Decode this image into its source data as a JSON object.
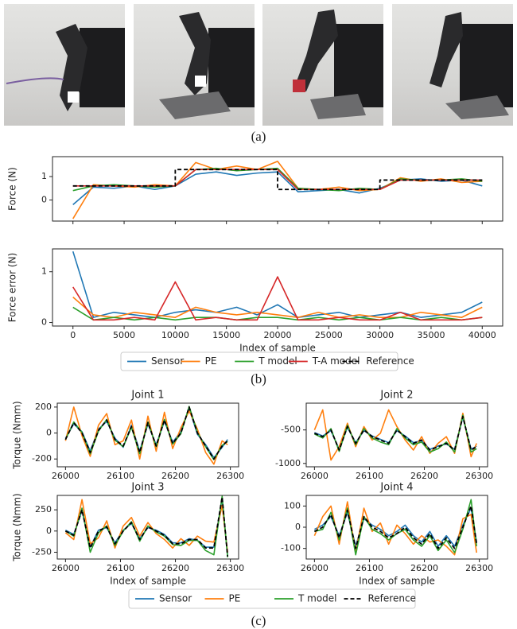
{
  "photos": {
    "caption": "(a)"
  },
  "chart_data": [
    {
      "type": "line",
      "caption": "(b)",
      "series": [
        {
          "name": "Sensor",
          "color": "#1f77b4"
        },
        {
          "name": "PE",
          "color": "#ff7f0e"
        },
        {
          "name": "T model",
          "color": "#2ca02c"
        },
        {
          "name": "T-A model",
          "color": "#d62728"
        },
        {
          "name": "Reference",
          "color": "#000000",
          "dashed": true
        }
      ],
      "xlim": [
        -2000,
        42000
      ],
      "xticks": [
        0,
        5000,
        10000,
        15000,
        20000,
        25000,
        30000,
        35000,
        40000
      ],
      "x": [
        0,
        2000,
        4000,
        6000,
        8000,
        10000,
        12000,
        14000,
        16000,
        18000,
        20000,
        22000,
        24000,
        26000,
        28000,
        30000,
        32000,
        34000,
        36000,
        38000,
        40000
      ],
      "panels": [
        {
          "ylabel": "Force (N)",
          "ylim": [
            -0.9,
            1.85
          ],
          "yticks": [
            0,
            1
          ],
          "showxticklabels": false,
          "lines": [
            {
              "values": [
                -0.2,
                0.55,
                0.5,
                0.6,
                0.45,
                0.6,
                1.1,
                1.2,
                1.05,
                1.15,
                1.2,
                0.35,
                0.4,
                0.45,
                0.3,
                0.5,
                0.85,
                0.9,
                0.8,
                0.85,
                0.6
              ]
            },
            {
              "values": [
                -0.8,
                0.65,
                0.6,
                0.55,
                0.65,
                0.6,
                1.6,
                1.3,
                1.45,
                1.3,
                1.65,
                0.5,
                0.45,
                0.55,
                0.4,
                0.45,
                0.95,
                0.8,
                0.9,
                0.75,
                0.8
              ]
            },
            {
              "values": [
                0.4,
                0.6,
                0.65,
                0.6,
                0.55,
                0.6,
                1.3,
                1.35,
                1.25,
                1.3,
                1.35,
                0.5,
                0.45,
                0.4,
                0.5,
                0.45,
                0.9,
                0.85,
                0.85,
                0.9,
                0.8
              ]
            },
            {
              "values": [
                0.6,
                0.6,
                0.6,
                0.6,
                0.6,
                0.6,
                1.3,
                1.3,
                1.3,
                1.3,
                1.3,
                0.45,
                0.45,
                0.45,
                0.45,
                0.45,
                0.85,
                0.85,
                0.85,
                0.85,
                0.85
              ]
            },
            {
              "x": [
                0,
                10000,
                10000,
                20000,
                20000,
                30000,
                30000,
                40000
              ],
              "values": [
                0.6,
                0.6,
                1.3,
                1.3,
                0.45,
                0.45,
                0.85,
                0.85
              ]
            }
          ]
        },
        {
          "ylabel": "Force error (N)",
          "ylim": [
            -0.07,
            1.45
          ],
          "yticks": [
            0,
            1
          ],
          "showxticklabels": true,
          "xlabel": "Index of sample",
          "lines": [
            {
              "values": [
                1.4,
                0.1,
                0.2,
                0.15,
                0.1,
                0.2,
                0.25,
                0.2,
                0.3,
                0.15,
                0.35,
                0.1,
                0.15,
                0.2,
                0.1,
                0.15,
                0.2,
                0.1,
                0.15,
                0.2,
                0.4
              ]
            },
            {
              "values": [
                0.5,
                0.15,
                0.1,
                0.2,
                0.15,
                0.1,
                0.3,
                0.2,
                0.15,
                0.2,
                0.15,
                0.1,
                0.2,
                0.1,
                0.15,
                0.1,
                0.1,
                0.2,
                0.15,
                0.1,
                0.3
              ]
            },
            {
              "values": [
                0.3,
                0.05,
                0.1,
                0.05,
                0.1,
                0.05,
                0.1,
                0.1,
                0.05,
                0.1,
                0.1,
                0.05,
                0.1,
                0.05,
                0.1,
                0.05,
                0.1,
                0.05,
                0.1,
                0.05,
                0.1
              ]
            },
            {
              "values": [
                0.7,
                0.05,
                0.05,
                0.1,
                0.05,
                0.8,
                0.05,
                0.1,
                0.05,
                0.05,
                0.9,
                0.05,
                0.05,
                0.1,
                0.05,
                0.05,
                0.2,
                0.05,
                0.05,
                0.05,
                0.1
              ]
            }
          ]
        }
      ]
    },
    {
      "type": "line",
      "caption": "(c)",
      "series": [
        {
          "name": "Sensor",
          "color": "#1f77b4"
        },
        {
          "name": "PE",
          "color": "#ff7f0e"
        },
        {
          "name": "T model",
          "color": "#2ca02c"
        },
        {
          "name": "Reference",
          "color": "#000000",
          "dashed": true
        }
      ],
      "xlim": [
        25985,
        26315
      ],
      "xticks": [
        26000,
        26100,
        26200,
        26300
      ],
      "x": [
        26000,
        26015,
        26030,
        26045,
        26060,
        26075,
        26090,
        26105,
        26120,
        26135,
        26150,
        26165,
        26180,
        26195,
        26210,
        26225,
        26240,
        26255,
        26270,
        26285,
        26295
      ],
      "panels": [
        {
          "title": "Joint 1",
          "ylabel": "Torque (Nmm)",
          "ylim": [
            -260,
            230
          ],
          "yticks": [
            -200,
            0,
            200
          ],
          "showxticklabels": true,
          "lines": [
            {
              "values": [
                -40,
                70,
                10,
                -140,
                30,
                90,
                -40,
                -110,
                60,
                -140,
                70,
                -90,
                90,
                -70,
                10,
                190,
                -10,
                -90,
                -190,
                -110,
                -50
              ]
            },
            {
              "values": [
                -60,
                200,
                -20,
                -180,
                60,
                150,
                -90,
                -60,
                100,
                -200,
                130,
                -140,
                160,
                -120,
                40,
                170,
                30,
                -150,
                -240,
                -60,
                -90
              ]
            },
            {
              "values": [
                -50,
                85,
                5,
                -160,
                15,
                105,
                -55,
                -105,
                45,
                -160,
                85,
                -105,
                105,
                -85,
                -5,
                205,
                5,
                -105,
                -205,
                -95,
                -65
              ]
            },
            {
              "values": [
                -50,
                80,
                0,
                -150,
                20,
                100,
                -50,
                -100,
                50,
                -150,
                80,
                -100,
                100,
                -80,
                0,
                200,
                0,
                -100,
                -200,
                -100,
                -60
              ]
            }
          ]
        },
        {
          "title": "Joint 2",
          "ylim": [
            -1050,
            -100
          ],
          "yticks": [
            -1000,
            -500
          ],
          "showxticklabels": true,
          "lines": [
            {
              "values": [
                -540,
                -590,
                -510,
                -790,
                -460,
                -690,
                -510,
                -590,
                -640,
                -690,
                -510,
                -590,
                -690,
                -660,
                -790,
                -740,
                -710,
                -790,
                -310,
                -790,
                -740
              ]
            },
            {
              "values": [
                -500,
                -200,
                -950,
                -750,
                -400,
                -750,
                -450,
                -650,
                -550,
                -200,
                -450,
                -650,
                -800,
                -600,
                -850,
                -700,
                -600,
                -850,
                -250,
                -900,
                -700
              ]
            },
            {
              "values": [
                -560,
                -620,
                -480,
                -820,
                -430,
                -720,
                -480,
                -620,
                -680,
                -720,
                -480,
                -620,
                -720,
                -680,
                -830,
                -780,
                -680,
                -830,
                -280,
                -830,
                -780
              ]
            },
            {
              "values": [
                -550,
                -600,
                -500,
                -800,
                -450,
                -700,
                -500,
                -600,
                -650,
                -700,
                -500,
                -600,
                -700,
                -650,
                -800,
                -750,
                -700,
                -800,
                -300,
                -800,
                -750
              ]
            }
          ]
        },
        {
          "title": "Joint 3",
          "ylabel": "Torque (Nmm)",
          "ylim": [
            -330,
            420
          ],
          "yticks": [
            -250,
            0,
            250
          ],
          "showxticklabels": true,
          "xlabel": "Index of sample",
          "lines": [
            {
              "values": [
                10,
                -40,
                240,
                -190,
                10,
                40,
                -140,
                10,
                90,
                -90,
                40,
                10,
                -40,
                -140,
                -140,
                -90,
                -110,
                -190,
                -190,
                380,
                -290
              ]
            },
            {
              "values": [
                -20,
                -100,
                370,
                -150,
                -80,
                120,
                -200,
                60,
                160,
                -60,
                100,
                -30,
                -100,
                -200,
                -90,
                -170,
                -60,
                -120,
                -130,
                300,
                -250
              ]
            },
            {
              "values": [
                0,
                -60,
                270,
                -250,
                -20,
                60,
                -170,
                0,
                110,
                -120,
                60,
                -10,
                -60,
                -160,
                -170,
                -110,
                -110,
                -230,
                -280,
                410,
                -310
              ]
            },
            {
              "values": [
                0,
                -50,
                250,
                -200,
                0,
                50,
                -150,
                0,
                100,
                -100,
                50,
                0,
                -50,
                -150,
                -150,
                -100,
                -100,
                -200,
                -200,
                400,
                -300
              ]
            }
          ]
        },
        {
          "title": "Joint 4",
          "ylim": [
            -150,
            150
          ],
          "yticks": [
            -100,
            0,
            100
          ],
          "showxticklabels": true,
          "xlabel": "Index of sample",
          "lines": [
            {
              "values": [
                -10,
                10,
                50,
                -40,
                70,
                -90,
                40,
                10,
                -10,
                -40,
                -20,
                10,
                -40,
                -70,
                -20,
                -90,
                -40,
                -90,
                10,
                90,
                -70
              ]
            },
            {
              "values": [
                -40,
                50,
                100,
                -80,
                120,
                -120,
                90,
                -20,
                20,
                -80,
                10,
                -30,
                -80,
                -40,
                -70,
                -60,
                -90,
                -130,
                40,
                60,
                -120
              ]
            },
            {
              "values": [
                -20,
                -10,
                70,
                -60,
                90,
                -130,
                50,
                -10,
                -30,
                -60,
                -30,
                -10,
                -60,
                -90,
                -40,
                -110,
                -60,
                -120,
                -10,
                130,
                -90
              ]
            },
            {
              "values": [
                -20,
                0,
                60,
                -50,
                80,
                -100,
                50,
                0,
                -20,
                -50,
                -30,
                0,
                -50,
                -80,
                -30,
                -100,
                -50,
                -100,
                0,
                100,
                -80
              ]
            }
          ]
        }
      ]
    }
  ]
}
